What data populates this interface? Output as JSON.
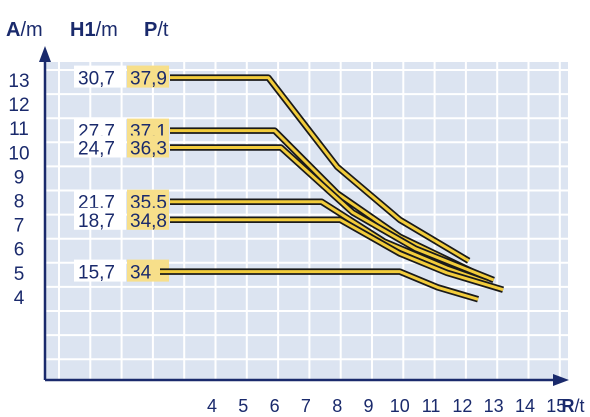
{
  "chart_data": {
    "type": "line",
    "axis_header": {
      "a_label": "A/m",
      "h1_label": "H1/m",
      "p_label": "P/t"
    },
    "xlabel": "R/t",
    "y_ticks": [
      "13",
      "12",
      "11",
      "10",
      "9",
      "8",
      "7",
      "6",
      "5",
      "4"
    ],
    "x_ticks": [
      "4",
      "5",
      "6",
      "7",
      "8",
      "9",
      "10",
      "11",
      "12",
      "13",
      "14",
      "15"
    ],
    "ylim": [
      3.4,
      13.6
    ],
    "xlim": [
      4,
      15
    ],
    "grid": true,
    "colors": {
      "grid_bg": "#dce4f1",
      "grid_line": "#ffffff",
      "axis": "#1a2a6c",
      "curve": "#f2cc3b",
      "curve_outline": "#1a1a1a",
      "label_bg": "#f7df8a",
      "text": "#1a2a6c"
    },
    "series": [
      {
        "name": "37,9",
        "h1": "30,7",
        "y_level": 13.1,
        "points": [
          [
            4.0,
            13.1
          ],
          [
            5.8,
            13.1
          ],
          [
            8.0,
            9.4
          ],
          [
            10.0,
            7.2
          ],
          [
            12.2,
            5.5
          ]
        ]
      },
      {
        "name": "37,1",
        "h1": "27,7",
        "y_level": 10.9,
        "points": [
          [
            4.0,
            10.9
          ],
          [
            6.0,
            10.9
          ],
          [
            8.0,
            8.3
          ],
          [
            10.0,
            6.5
          ],
          [
            12.4,
            5.0
          ]
        ]
      },
      {
        "name": "36,3",
        "h1": "24,7",
        "y_level": 10.2,
        "points": [
          [
            4.0,
            10.2
          ],
          [
            6.2,
            10.2
          ],
          [
            8.5,
            7.5
          ],
          [
            10.5,
            6.0
          ],
          [
            13.0,
            4.7
          ]
        ]
      },
      {
        "name": "35,5",
        "h1": "21,7",
        "y_level": 7.95,
        "points": [
          [
            4.0,
            7.95
          ],
          [
            7.5,
            7.95
          ],
          [
            9.5,
            6.3
          ],
          [
            11.5,
            5.2
          ],
          [
            12.8,
            4.6
          ]
        ]
      },
      {
        "name": "34,8",
        "h1": "18,7",
        "y_level": 7.2,
        "points": [
          [
            4.0,
            7.2
          ],
          [
            8.1,
            7.2
          ],
          [
            10.0,
            5.8
          ],
          [
            11.5,
            5.0
          ],
          [
            13.3,
            4.3
          ]
        ]
      },
      {
        "name": "34",
        "h1": "15,7",
        "y_level": 5.05,
        "points": [
          [
            4.0,
            5.05
          ],
          [
            10.0,
            5.05
          ],
          [
            11.2,
            4.4
          ],
          [
            12.5,
            3.9
          ]
        ]
      }
    ]
  }
}
